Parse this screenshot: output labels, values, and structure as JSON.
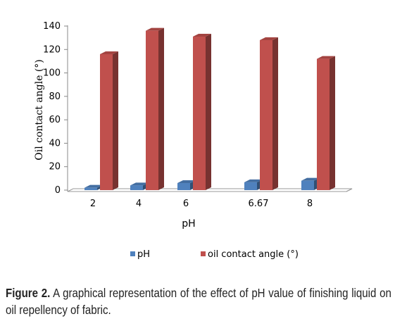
{
  "chart_data": {
    "type": "bar",
    "categories": [
      "2",
      "4",
      "6",
      "6.67",
      "8"
    ],
    "series": [
      {
        "name": "pH",
        "values": [
          2,
          4,
          6,
          6.67,
          8
        ],
        "color": "#4f81bd"
      },
      {
        "name": "oil contact angle (°)",
        "values": [
          116,
          136,
          131,
          128,
          112
        ],
        "color": "#c0504d"
      }
    ],
    "xlabel": "pH",
    "ylabel": "Oil contact angle (°)",
    "ylim": [
      0,
      140
    ],
    "yticks": [
      "0",
      "20",
      "40",
      "60",
      "80",
      "100",
      "120",
      "140"
    ],
    "grid": false,
    "legend": "bottom",
    "style": "3d-column"
  },
  "caption": {
    "label": "Figure 2.",
    "text": "A graphical representation of the effect of pH value of finishing liquid on oil repellency of fabric."
  }
}
